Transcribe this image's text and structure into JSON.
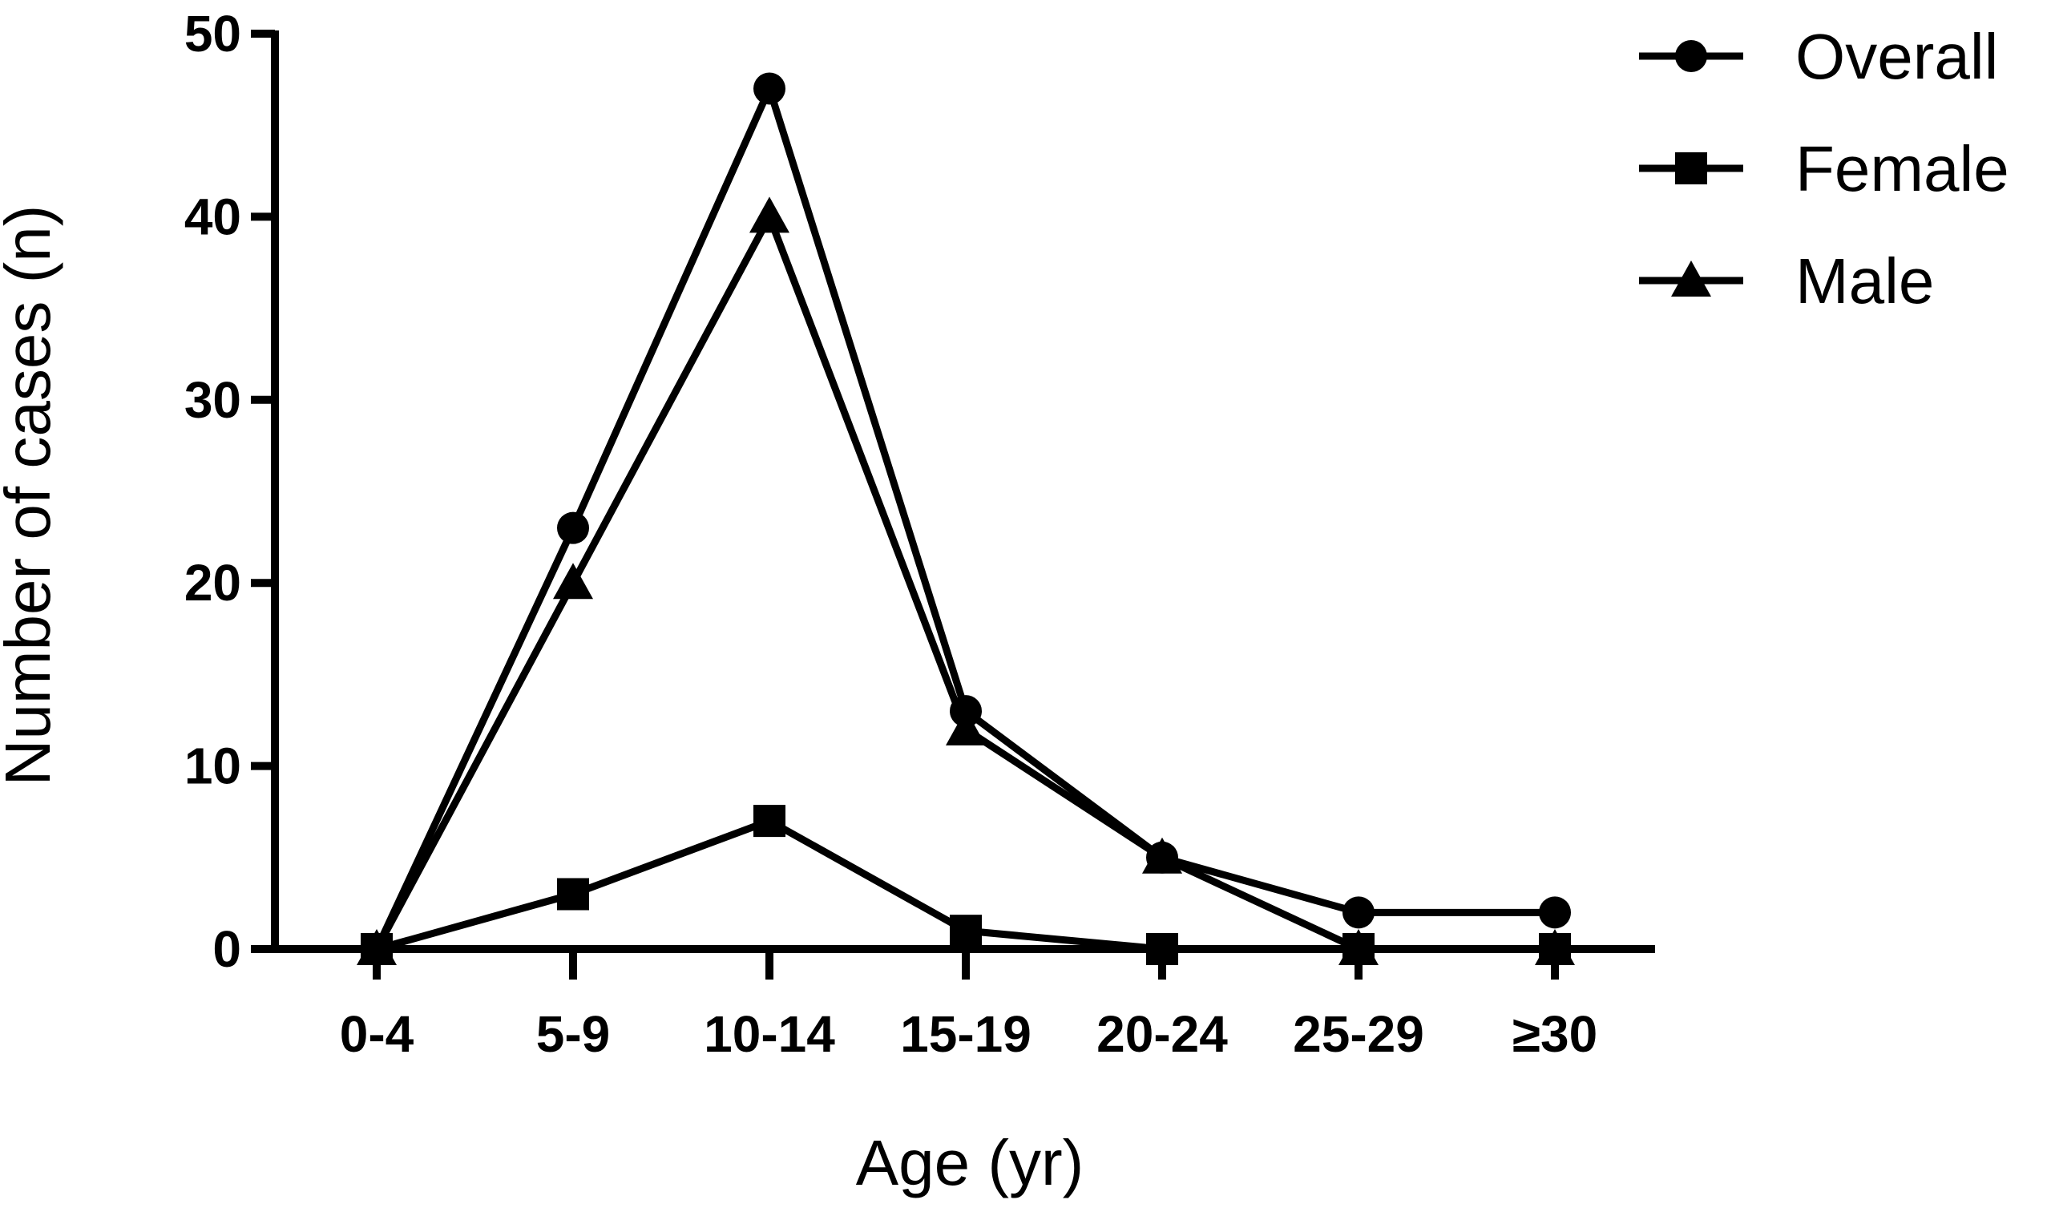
{
  "chart_data": {
    "type": "line",
    "xlabel": "Age (yr)",
    "ylabel": "Number of cases (n)",
    "categories": [
      "0-4",
      "5-9",
      "10-14",
      "15-19",
      "20-24",
      "25-29",
      "≥30"
    ],
    "ylim": [
      0,
      50
    ],
    "yticks": [
      0,
      10,
      20,
      30,
      40,
      50
    ],
    "grid": false,
    "legend_position": "top-right",
    "series": [
      {
        "name": "Overall",
        "marker": "circle",
        "values": [
          0,
          23,
          47,
          13,
          5,
          2,
          2
        ]
      },
      {
        "name": "Female",
        "marker": "square",
        "values": [
          0,
          3,
          7,
          1,
          0,
          0,
          0
        ]
      },
      {
        "name": "Male",
        "marker": "triangle",
        "values": [
          0,
          20,
          40,
          12,
          5,
          0,
          0
        ]
      }
    ],
    "line_color": "#000000"
  }
}
